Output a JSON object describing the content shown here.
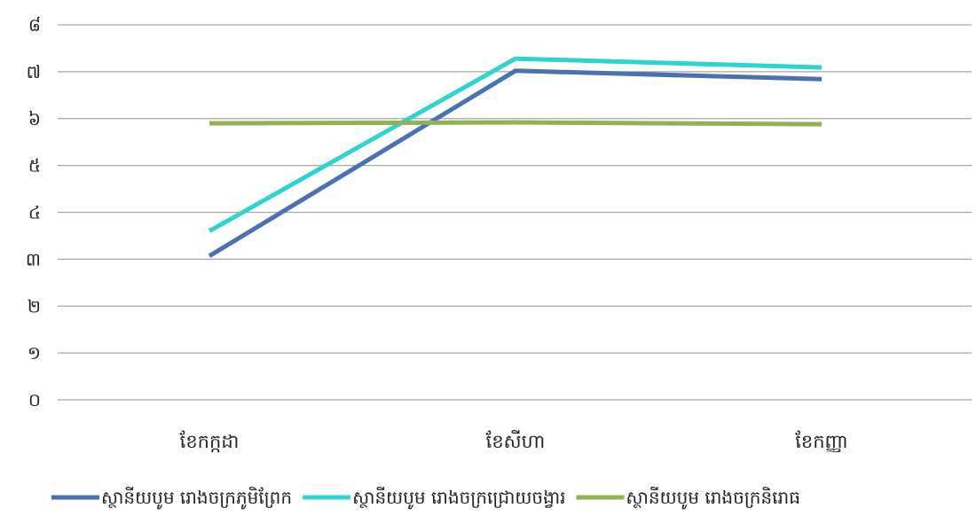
{
  "chart_data": {
    "type": "line",
    "title": "",
    "xlabel": "",
    "ylabel": "",
    "ylim": [
      0,
      8
    ],
    "yticks": [
      0,
      1,
      2,
      3,
      4,
      5,
      6,
      7,
      8
    ],
    "ytick_labels": [
      "០",
      "១",
      "២",
      "៣",
      "៤",
      "៥",
      "៦",
      "៧",
      "៨"
    ],
    "categories": [
      "ខែកក្កដា",
      "ខែសីហា",
      "ខែកញ្ញា"
    ],
    "grid": true,
    "legend": "bottom",
    "series": [
      {
        "name": "ស្ថានីយបូម រោងចក្រភូមិព្រែក",
        "color": "#4a72b0",
        "values": [
          3.07,
          7.02,
          6.84
        ]
      },
      {
        "name": "ស្ថានីយបូម រោងចក្រជ្រោយចង្វារ",
        "color": "#2ed3d3",
        "values": [
          3.6,
          7.28,
          7.09
        ]
      },
      {
        "name": "ស្ថានីយបូម រោងចក្រនិរោធ",
        "color": "#8fb254",
        "values": [
          5.9,
          5.92,
          5.88
        ]
      }
    ]
  }
}
